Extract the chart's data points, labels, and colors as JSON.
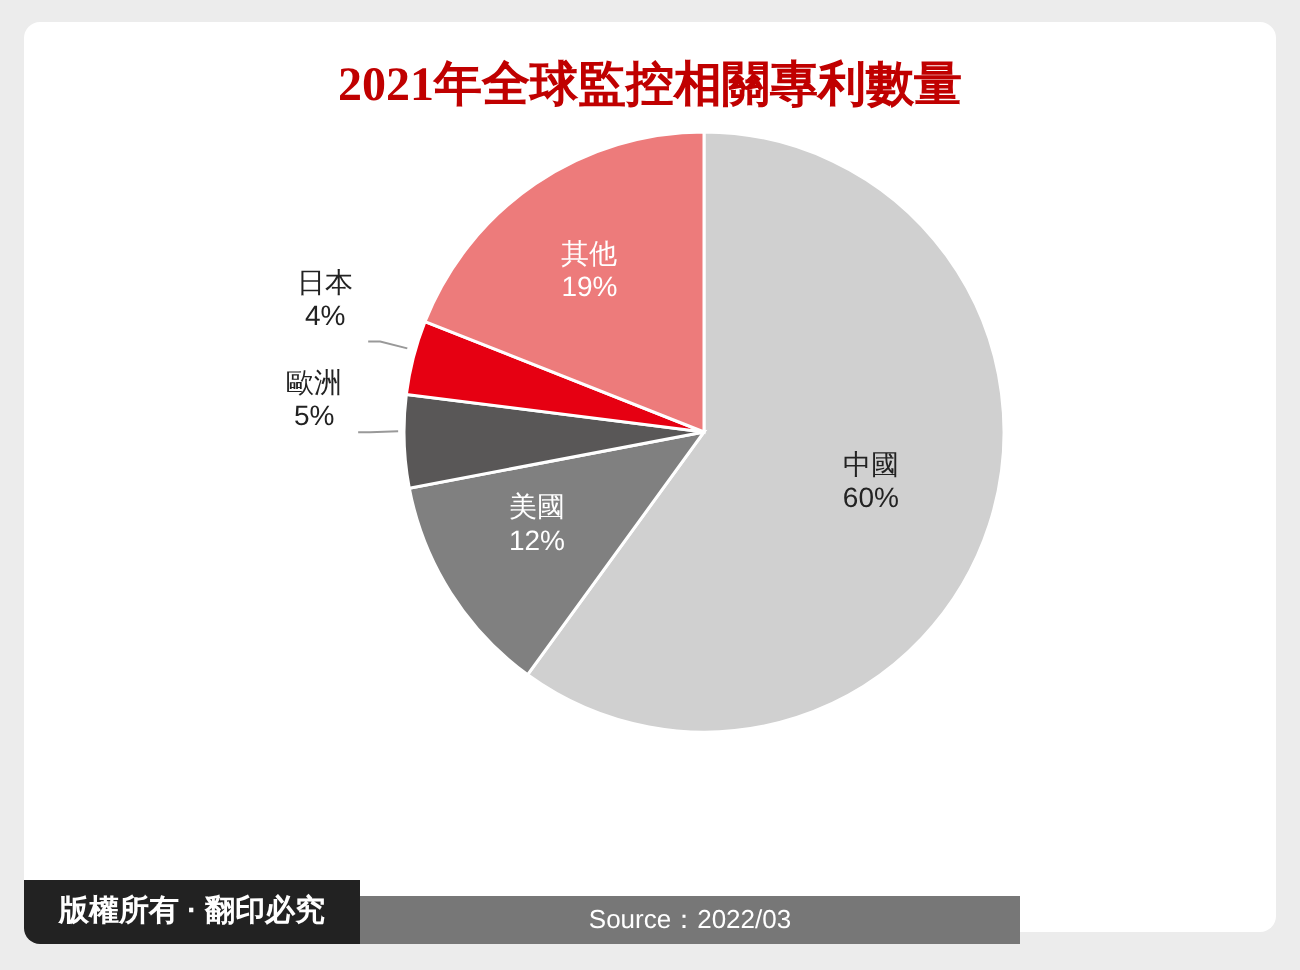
{
  "chart_data": {
    "type": "pie",
    "title": "2021年全球監控相關專利數量",
    "categories": [
      "中國",
      "美國",
      "歐洲",
      "日本",
      "其他"
    ],
    "values": [
      60,
      12,
      5,
      4,
      19
    ],
    "value_labels": [
      "60%",
      "12%",
      "5%",
      "4%",
      "19%"
    ],
    "colors": [
      "#d0d0d0",
      "#808080",
      "#595757",
      "#e60012",
      "#ed7b7b"
    ],
    "legend": false,
    "annotations": [
      "版權所有 · 翻印必究",
      "Source：2022/03"
    ]
  }
}
